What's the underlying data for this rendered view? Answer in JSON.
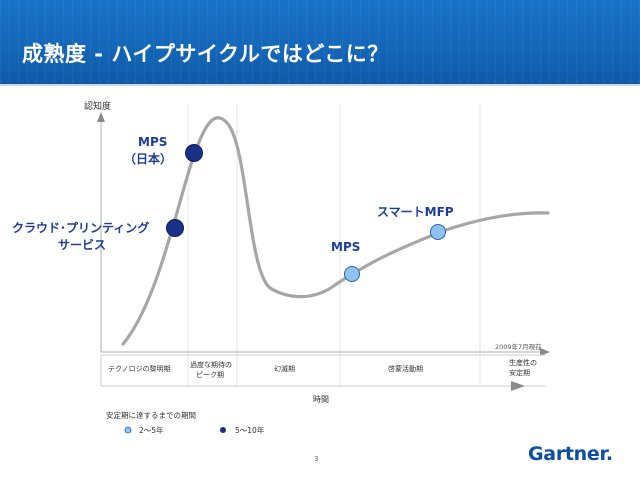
{
  "slide": {
    "title": "成熟度 - ハイプサイクルではどこに？",
    "page_number": "3",
    "logo_text": "Gartner",
    "logo_dot": "."
  },
  "diagram": {
    "y_axis_label": "認知度",
    "x_axis_label": "時間",
    "as_of_note": "2009年7月現在",
    "phases": [
      "テクノロジの黎明期",
      "過度な期待の",
      "ピーク期",
      "幻滅期",
      "啓蒙活動期",
      "生産性の",
      "安定期"
    ],
    "labels": {
      "mps_japan_line1": "MPS",
      "mps_japan_line2": "（日本）",
      "cloud_printing_line1": "クラウド･プリンティング",
      "cloud_printing_line2": "サービス",
      "mps": "MPS",
      "smart_mfp": "スマートMFP"
    },
    "legend": {
      "title": "安定期に達するまでの期間",
      "light": "2～5年",
      "dark": "5～10年"
    },
    "colors": {
      "curve": "#a6a6a6",
      "dark_marker": "#1a2f86",
      "light_marker": "#8fc3f2",
      "label_blue": "#1b3d9c"
    }
  }
}
